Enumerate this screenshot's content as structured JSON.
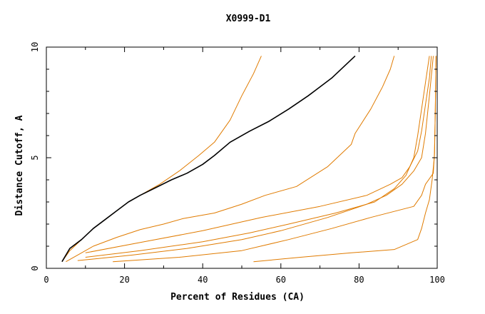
{
  "chart_data": {
    "type": "line",
    "title": "X0999-D1",
    "xlabel": "Percent of Residues (CA)",
    "ylabel": "Distance Cutoff, A",
    "xlim": [
      0,
      100
    ],
    "ylim": [
      0,
      10
    ],
    "x_ticks": [
      0,
      20,
      40,
      60,
      80,
      100
    ],
    "y_ticks": [
      0,
      5,
      10
    ],
    "grid": false,
    "legend": "none",
    "colors": {
      "highlight": "#000000",
      "others": "#e07b00",
      "axis": "#000000"
    },
    "series": [
      {
        "highlight": true,
        "points": [
          [
            4,
            0.3
          ],
          [
            6,
            0.9
          ],
          [
            9,
            1.3
          ],
          [
            12,
            1.8
          ],
          [
            15,
            2.2
          ],
          [
            18,
            2.6
          ],
          [
            21,
            3.0
          ],
          [
            24,
            3.3
          ],
          [
            28,
            3.65
          ],
          [
            32,
            4.0
          ],
          [
            36,
            4.3
          ],
          [
            40,
            4.7
          ],
          [
            43,
            5.1
          ],
          [
            47,
            5.7
          ],
          [
            52,
            6.2
          ],
          [
            57,
            6.65
          ],
          [
            62,
            7.2
          ],
          [
            67,
            7.8
          ],
          [
            73,
            8.6
          ],
          [
            79,
            9.6
          ]
        ]
      },
      {
        "points": [
          [
            4,
            0.3
          ],
          [
            6,
            0.8
          ],
          [
            9,
            1.3
          ],
          [
            12,
            1.8
          ],
          [
            15,
            2.2
          ],
          [
            18,
            2.6
          ],
          [
            21,
            3.0
          ],
          [
            24,
            3.3
          ],
          [
            29,
            3.8
          ],
          [
            34,
            4.4
          ],
          [
            39,
            5.1
          ],
          [
            43,
            5.7
          ],
          [
            47,
            6.7
          ],
          [
            50,
            7.8
          ],
          [
            53,
            8.8
          ],
          [
            55,
            9.6
          ]
        ]
      },
      {
        "points": [
          [
            5,
            0.3
          ],
          [
            8,
            0.6
          ],
          [
            12,
            1.0
          ],
          [
            18,
            1.4
          ],
          [
            24,
            1.75
          ],
          [
            30,
            2.0
          ],
          [
            35,
            2.25
          ],
          [
            43,
            2.5
          ],
          [
            50,
            2.9
          ],
          [
            56,
            3.3
          ],
          [
            64,
            3.7
          ],
          [
            72,
            4.6
          ],
          [
            78,
            5.6
          ],
          [
            79,
            6.1
          ],
          [
            83,
            7.2
          ],
          [
            86,
            8.2
          ],
          [
            88,
            9.0
          ],
          [
            89,
            9.6
          ]
        ]
      },
      {
        "points": [
          [
            10,
            0.7
          ],
          [
            25,
            1.2
          ],
          [
            40,
            1.7
          ],
          [
            55,
            2.3
          ],
          [
            70,
            2.8
          ],
          [
            82,
            3.3
          ],
          [
            88,
            3.8
          ],
          [
            91,
            4.1
          ],
          [
            93,
            4.6
          ],
          [
            95,
            5.3
          ],
          [
            96,
            6.2
          ],
          [
            97,
            7.4
          ],
          [
            98,
            8.6
          ],
          [
            98.5,
            9.6
          ]
        ]
      },
      {
        "points": [
          [
            10,
            0.5
          ],
          [
            24,
            0.8
          ],
          [
            40,
            1.2
          ],
          [
            52,
            1.6
          ],
          [
            62,
            2.0
          ],
          [
            74,
            2.5
          ],
          [
            84,
            3.0
          ],
          [
            89,
            3.6
          ],
          [
            92,
            4.2
          ],
          [
            94,
            5.0
          ],
          [
            95,
            6.0
          ],
          [
            96,
            7.2
          ],
          [
            97,
            8.4
          ],
          [
            98,
            9.6
          ]
        ]
      },
      {
        "points": [
          [
            8,
            0.35
          ],
          [
            22,
            0.6
          ],
          [
            36,
            0.9
          ],
          [
            50,
            1.3
          ],
          [
            60,
            1.7
          ],
          [
            72,
            2.3
          ],
          [
            82,
            2.9
          ],
          [
            87,
            3.3
          ],
          [
            91,
            3.8
          ],
          [
            94,
            4.4
          ],
          [
            96,
            5.0
          ],
          [
            97,
            6.1
          ],
          [
            98,
            7.8
          ],
          [
            99,
            9.6
          ]
        ]
      },
      {
        "points": [
          [
            17,
            0.3
          ],
          [
            34,
            0.5
          ],
          [
            50,
            0.8
          ],
          [
            62,
            1.3
          ],
          [
            73,
            1.8
          ],
          [
            83,
            2.3
          ],
          [
            94,
            2.8
          ],
          [
            96,
            3.3
          ],
          [
            97,
            3.8
          ],
          [
            99,
            4.3
          ],
          [
            99.3,
            5.2
          ],
          [
            99.5,
            7.0
          ],
          [
            99.7,
            9.6
          ]
        ]
      },
      {
        "points": [
          [
            53,
            0.3
          ],
          [
            65,
            0.5
          ],
          [
            78,
            0.7
          ],
          [
            89,
            0.85
          ],
          [
            95,
            1.3
          ],
          [
            96,
            1.8
          ],
          [
            97,
            2.5
          ],
          [
            98,
            3.1
          ],
          [
            98.7,
            4.0
          ],
          [
            99.3,
            5.1
          ],
          [
            99.5,
            7.0
          ],
          [
            99.7,
            9.6
          ]
        ]
      }
    ]
  }
}
